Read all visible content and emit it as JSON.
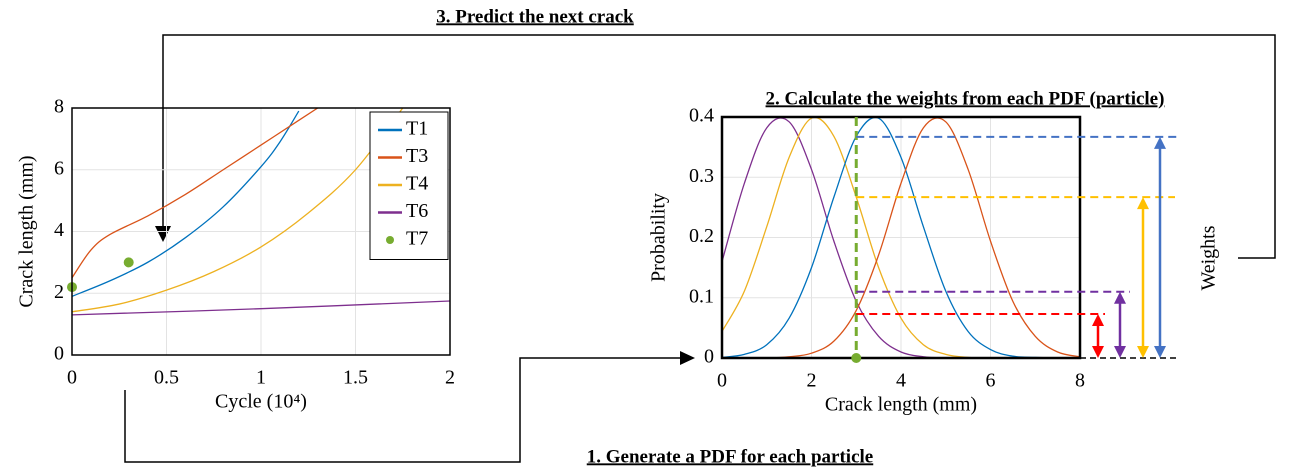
{
  "steps": [
    "1. Generate a PDF for each particle",
    "2. Calculate the weights from each PDF (particle)",
    "3. Predict the next crack"
  ],
  "chart_data": [
    {
      "type": "line",
      "xlabel": "Cycle (10⁴)",
      "ylabel": "Crack length (mm)",
      "xlim": [
        0,
        2
      ],
      "xticks": [
        0,
        0.5,
        1,
        1.5,
        2
      ],
      "ylim": [
        0,
        8
      ],
      "yticks": [
        0,
        2,
        4,
        6,
        8
      ],
      "grid": true,
      "legend": "upper right",
      "series": [
        {
          "name": "T1",
          "color": "#0072BD",
          "x": [
            0,
            0.2,
            0.4,
            0.6,
            0.8,
            1.0,
            1.1,
            1.2
          ],
          "values": [
            1.9,
            2.4,
            3.0,
            3.8,
            4.8,
            6.1,
            6.9,
            7.9
          ]
        },
        {
          "name": "T3",
          "color": "#D95319",
          "x": [
            0,
            0.1,
            0.2,
            0.4,
            0.6,
            0.8,
            1.0,
            1.2,
            1.3
          ],
          "values": [
            2.5,
            3.4,
            3.9,
            4.5,
            5.2,
            6.0,
            6.8,
            7.6,
            8.0
          ]
        },
        {
          "name": "T4",
          "color": "#EDB120",
          "x": [
            0,
            0.25,
            0.5,
            0.75,
            1.0,
            1.25,
            1.5,
            1.75
          ],
          "values": [
            1.4,
            1.65,
            2.1,
            2.7,
            3.5,
            4.6,
            6.0,
            8.0
          ]
        },
        {
          "name": "T6",
          "color": "#7E2F8E",
          "x": [
            0,
            1,
            2
          ],
          "values": [
            1.3,
            1.5,
            1.75
          ]
        },
        {
          "name": "T7",
          "color": "#77AC30",
          "marker": "dot",
          "x": [
            0,
            0.3
          ],
          "values": [
            2.2,
            3.0
          ]
        }
      ]
    },
    {
      "type": "line",
      "xlabel": "Crack length (mm)",
      "ylabel": "Probability",
      "xlim": [
        0,
        8
      ],
      "xticks": [
        0,
        2,
        4,
        6,
        8
      ],
      "ylim": [
        0,
        0.4
      ],
      "yticks": [
        0,
        0.1,
        0.2,
        0.3,
        0.4
      ],
      "grid": true,
      "x": [
        0,
        0.5,
        1,
        1.5,
        2,
        2.5,
        3,
        3.5,
        4,
        4.5,
        5,
        5.5,
        6,
        6.5,
        7,
        7.5,
        8
      ],
      "series": [
        {
          "color": "#7E2F8E",
          "values": [
            0.16,
            0.29,
            0.382,
            0.392,
            0.313,
            0.194,
            0.094,
            0.036,
            0.01,
            0.002,
            0,
            0,
            0,
            0,
            0,
            0,
            0
          ]
        },
        {
          "color": "#EDB120",
          "values": [
            0.044,
            0.111,
            0.218,
            0.333,
            0.398,
            0.368,
            0.267,
            0.15,
            0.066,
            0.022,
            0.006,
            0.001,
            0,
            0,
            0,
            0,
            0
          ]
        },
        {
          "color": "#0072BD",
          "values": [
            0.001,
            0.006,
            0.022,
            0.066,
            0.15,
            0.267,
            0.368,
            0.398,
            0.333,
            0.218,
            0.111,
            0.044,
            0.014,
            0.003,
            0.001,
            0,
            0
          ]
        },
        {
          "color": "#D95319",
          "values": [
            0,
            0,
            0,
            0.002,
            0.008,
            0.028,
            0.079,
            0.171,
            0.29,
            0.382,
            0.392,
            0.313,
            0.194,
            0.094,
            0.036,
            0.01,
            0.002
          ]
        }
      ],
      "observation": {
        "x": 3,
        "color": "#77AC30"
      },
      "weights": {
        "label": "Weights",
        "values": [
          0.073,
          0.11,
          0.267,
          0.367
        ],
        "colors": [
          "#FF0000",
          "#7030A0",
          "#FFC000",
          "#4472C4"
        ]
      }
    }
  ]
}
